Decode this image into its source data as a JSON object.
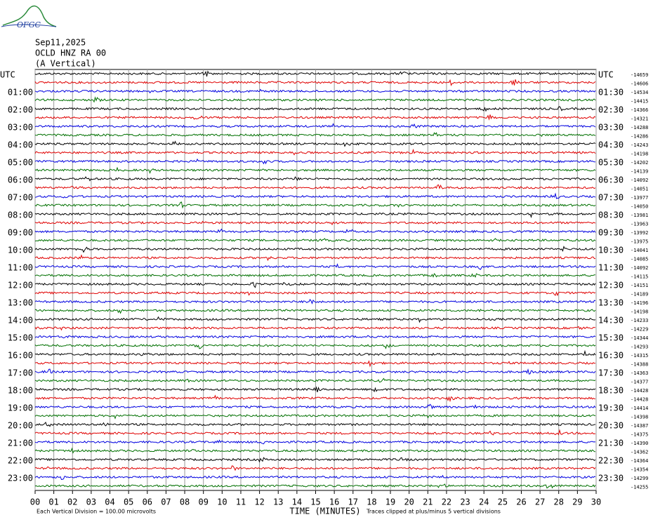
{
  "logo": "OFGC",
  "header": {
    "date": "Sep11,2025",
    "station": "OCLD HNZ RA 00",
    "component": "(A Vertical)"
  },
  "left_labels": [
    "UTC",
    "01:00",
    "02:00",
    "03:00",
    "04:00",
    "05:00",
    "06:00",
    "07:00",
    "08:00",
    "09:00",
    "10:00",
    "11:00",
    "12:00",
    "13:00",
    "14:00",
    "15:00",
    "16:00",
    "17:00",
    "18:00",
    "19:00",
    "20:00",
    "21:00",
    "22:00",
    "23:00"
  ],
  "right_labels": [
    "UTC",
    "01:30",
    "02:30",
    "03:30",
    "04:30",
    "05:30",
    "06:30",
    "07:30",
    "08:30",
    "09:30",
    "10:30",
    "11:30",
    "12:30",
    "13:30",
    "14:30",
    "15:30",
    "16:30",
    "17:30",
    "18:30",
    "19:30",
    "20:30",
    "21:30",
    "22:30",
    "23:30"
  ],
  "trace_offsets": [
    -14659,
    -14606,
    -14534,
    -14415,
    -14366,
    -14321,
    -14288,
    -14286,
    -14243,
    -14198,
    -14202,
    -14139,
    -14092,
    -14051,
    -13977,
    -14050,
    -13981,
    -13963,
    -13992,
    -13975,
    -14041,
    -14085,
    -14092,
    -14115,
    -14151,
    -14189,
    -14196,
    -14198,
    -14233,
    -14229,
    -14344,
    -14293,
    -14315,
    -14388,
    -14363,
    -14377,
    -14428,
    -14428,
    -14414,
    -14398,
    -14387,
    -14375,
    -14390,
    -14362,
    -14364,
    -14354,
    -14299,
    -14255
  ],
  "x_labels": [
    "00",
    "01",
    "02",
    "03",
    "04",
    "05",
    "06",
    "07",
    "08",
    "09",
    "10",
    "11",
    "12",
    "13",
    "14",
    "15",
    "16",
    "17",
    "18",
    "19",
    "20",
    "21",
    "22",
    "23",
    "24",
    "25",
    "26",
    "27",
    "28",
    "29",
    "30"
  ],
  "footer": {
    "division": "Each Vertical Division =  100.00 microvolts",
    "x_title": "TIME (MINUTES)",
    "clip_note": "Traces clipped at plus/minus 5 vertical divisions"
  }
}
